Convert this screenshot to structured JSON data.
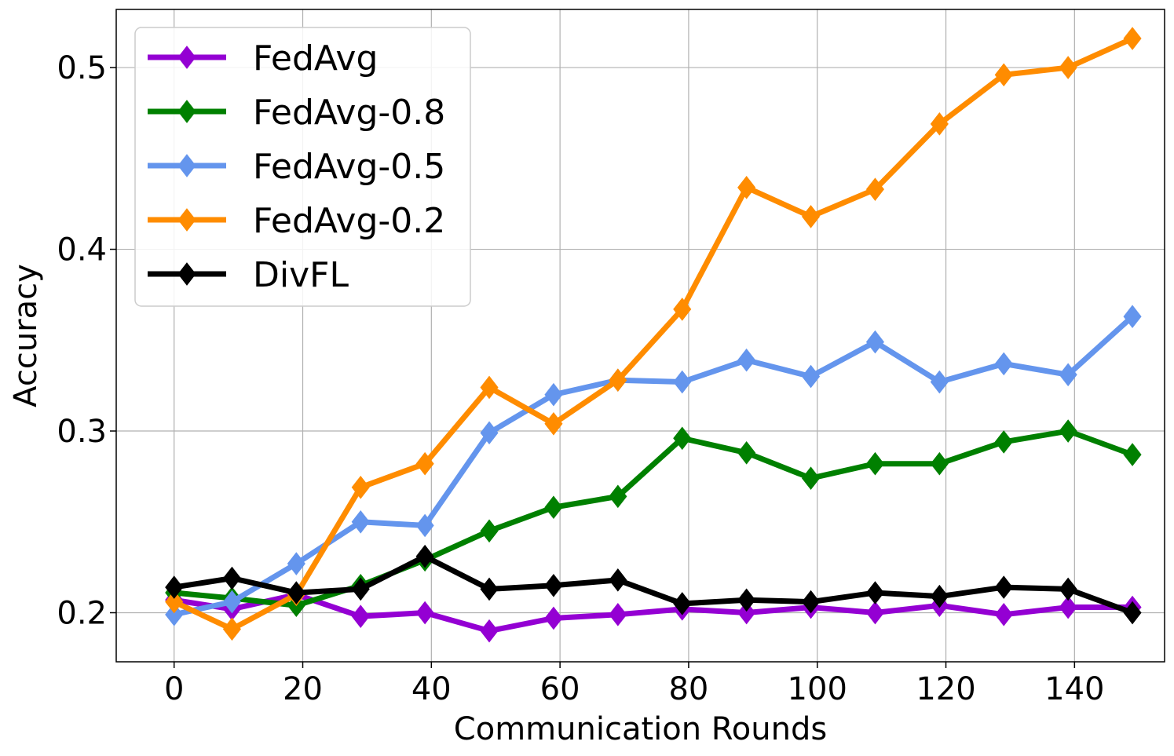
{
  "chart_data": {
    "type": "line",
    "title": "",
    "xlabel": "Communication Rounds",
    "ylabel": "Accuracy",
    "xlim": [
      -9,
      154
    ],
    "ylim": [
      0.173,
      0.532
    ],
    "xticks": [
      0,
      20,
      40,
      60,
      80,
      100,
      120,
      140
    ],
    "yticks": [
      0.2,
      0.3,
      0.4,
      0.5
    ],
    "ytick_labels": [
      "0.2",
      "0.3",
      "0.4",
      "0.5"
    ],
    "grid": true,
    "legend_position": "top-left",
    "x": [
      0,
      9,
      19,
      29,
      39,
      49,
      59,
      69,
      79,
      89,
      99,
      109,
      119,
      129,
      139,
      149
    ],
    "series": [
      {
        "name": "FedAvg",
        "color": "#9400D3",
        "values": [
          0.207,
          0.202,
          0.21,
          0.198,
          0.2,
          0.19,
          0.197,
          0.199,
          0.202,
          0.2,
          0.203,
          0.2,
          0.204,
          0.199,
          0.203,
          0.203
        ]
      },
      {
        "name": "FedAvg-0.8",
        "color": "#008000",
        "values": [
          0.211,
          0.208,
          0.204,
          0.215,
          0.229,
          0.245,
          0.258,
          0.264,
          0.296,
          0.288,
          0.274,
          0.282,
          0.282,
          0.294,
          0.3,
          0.287
        ]
      },
      {
        "name": "FedAvg-0.5",
        "color": "#6495ED",
        "values": [
          0.199,
          0.206,
          0.227,
          0.25,
          0.248,
          0.299,
          0.32,
          0.328,
          0.327,
          0.339,
          0.33,
          0.349,
          0.327,
          0.337,
          0.331,
          0.363
        ]
      },
      {
        "name": "FedAvg-0.2",
        "color": "#FF8C00",
        "values": [
          0.206,
          0.191,
          0.21,
          0.269,
          0.282,
          0.324,
          0.304,
          0.328,
          0.367,
          0.434,
          0.418,
          0.433,
          0.469,
          0.496,
          0.5,
          0.516
        ]
      },
      {
        "name": "DivFL",
        "color": "#000000",
        "values": [
          0.214,
          0.219,
          0.211,
          0.213,
          0.231,
          0.213,
          0.215,
          0.218,
          0.205,
          0.207,
          0.206,
          0.211,
          0.209,
          0.214,
          0.213,
          0.2
        ]
      }
    ]
  }
}
